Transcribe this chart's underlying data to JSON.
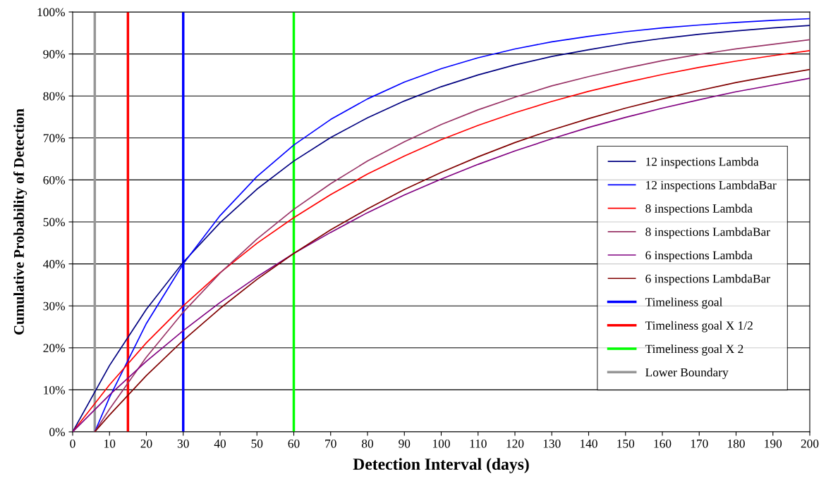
{
  "chart_data": {
    "type": "line",
    "xlabel": "Detection Interval (days)",
    "ylabel": "Cumulative Probability of Detection",
    "x": [
      0,
      10,
      20,
      30,
      40,
      50,
      60,
      70,
      80,
      90,
      100,
      110,
      120,
      130,
      140,
      150,
      160,
      170,
      180,
      190,
      200
    ],
    "series": [
      {
        "name": "12 inspections Lambda",
        "color": "#000080",
        "values": [
          0,
          15.8,
          29.2,
          40.4,
          49.8,
          57.8,
          64.5,
          70.1,
          74.8,
          78.8,
          82.2,
          85.0,
          87.4,
          89.4,
          91.0,
          92.5,
          93.7,
          94.7,
          95.5,
          96.2,
          96.8
        ]
      },
      {
        "name": "12 inspections LambdaBar",
        "color": "#0000ff",
        "x": [
          6,
          10,
          20,
          30,
          40,
          50,
          60,
          70,
          80,
          90,
          100,
          110,
          120,
          130,
          140,
          150,
          160,
          170,
          180,
          190,
          200
        ],
        "values": [
          0,
          8.2,
          25.8,
          40.0,
          51.5,
          60.8,
          68.3,
          74.4,
          79.3,
          83.3,
          86.5,
          89.1,
          91.2,
          92.9,
          94.2,
          95.3,
          96.2,
          96.9,
          97.5,
          98.0,
          98.4
        ]
      },
      {
        "name": "8 inspections Lambda",
        "color": "#ff0000",
        "values": [
          0,
          11.2,
          21.2,
          30.0,
          37.9,
          44.9,
          51.0,
          56.5,
          61.4,
          65.7,
          69.6,
          73.0,
          76.0,
          78.7,
          81.1,
          83.2,
          85.1,
          86.8,
          88.3,
          89.6,
          90.8
        ]
      },
      {
        "name": "8 inspections LambdaBar",
        "color": "#993366",
        "x": [
          6,
          10,
          20,
          30,
          40,
          50,
          60,
          70,
          80,
          90,
          100,
          110,
          120,
          130,
          140,
          150,
          160,
          170,
          180,
          190,
          200
        ],
        "values": [
          0,
          5.4,
          17.8,
          28.5,
          37.8,
          45.9,
          53.0,
          59.1,
          64.5,
          69.1,
          73.2,
          76.7,
          79.7,
          82.4,
          84.6,
          86.6,
          88.4,
          89.9,
          91.2,
          92.3,
          93.4
        ]
      },
      {
        "name": "6 inspections Lambda",
        "color": "#800080",
        "values": [
          0,
          8.8,
          16.8,
          24.1,
          30.8,
          36.9,
          42.5,
          47.5,
          52.2,
          56.4,
          60.2,
          63.7,
          66.9,
          69.8,
          72.5,
          74.9,
          77.1,
          79.1,
          81.0,
          82.6,
          84.2
        ]
      },
      {
        "name": "6 inspections LambdaBar",
        "color": "#800000",
        "x": [
          6,
          10,
          20,
          30,
          40,
          50,
          60,
          70,
          80,
          90,
          100,
          110,
          120,
          130,
          140,
          150,
          160,
          170,
          180,
          190,
          200
        ],
        "values": [
          0,
          4.0,
          13.4,
          21.8,
          29.4,
          36.3,
          42.5,
          48.1,
          53.1,
          57.7,
          61.8,
          65.5,
          68.9,
          71.9,
          74.6,
          77.1,
          79.3,
          81.3,
          83.2,
          84.8,
          86.3
        ]
      },
      {
        "name": "Timeliness goal",
        "color": "#0000ff",
        "x": [
          30,
          30
        ],
        "values": [
          0,
          100
        ]
      },
      {
        "name": "Timeliness goal X 1/2",
        "color": "#ff0000",
        "x": [
          15,
          15
        ],
        "values": [
          0,
          100
        ]
      },
      {
        "name": "Timeliness goal X 2",
        "color": "#00ff00",
        "x": [
          60,
          60
        ],
        "values": [
          0,
          100
        ]
      },
      {
        "name": "Lower Boundary",
        "color": "#969696",
        "x": [
          6,
          6
        ],
        "values": [
          0,
          100
        ]
      }
    ],
    "xlim": [
      0,
      200
    ],
    "xticks": [
      0,
      10,
      20,
      30,
      40,
      50,
      60,
      70,
      80,
      90,
      100,
      110,
      120,
      130,
      140,
      150,
      160,
      170,
      180,
      190,
      200
    ],
    "ylim": [
      0,
      100
    ],
    "yticks": [
      {
        "value": 0,
        "label": "0%"
      },
      {
        "value": 10,
        "label": "10%"
      },
      {
        "value": 20,
        "label": "20%"
      },
      {
        "value": 30,
        "label": "30%"
      },
      {
        "value": 40,
        "label": "40%"
      },
      {
        "value": 50,
        "label": "50%"
      },
      {
        "value": 60,
        "label": "60%"
      },
      {
        "value": 70,
        "label": "70%"
      },
      {
        "value": 80,
        "label": "80%"
      },
      {
        "value": 90,
        "label": "90%"
      },
      {
        "value": 100,
        "label": "100%"
      }
    ],
    "grid": "y",
    "legend": "right",
    "marker": "none",
    "line_style": "solid"
  }
}
